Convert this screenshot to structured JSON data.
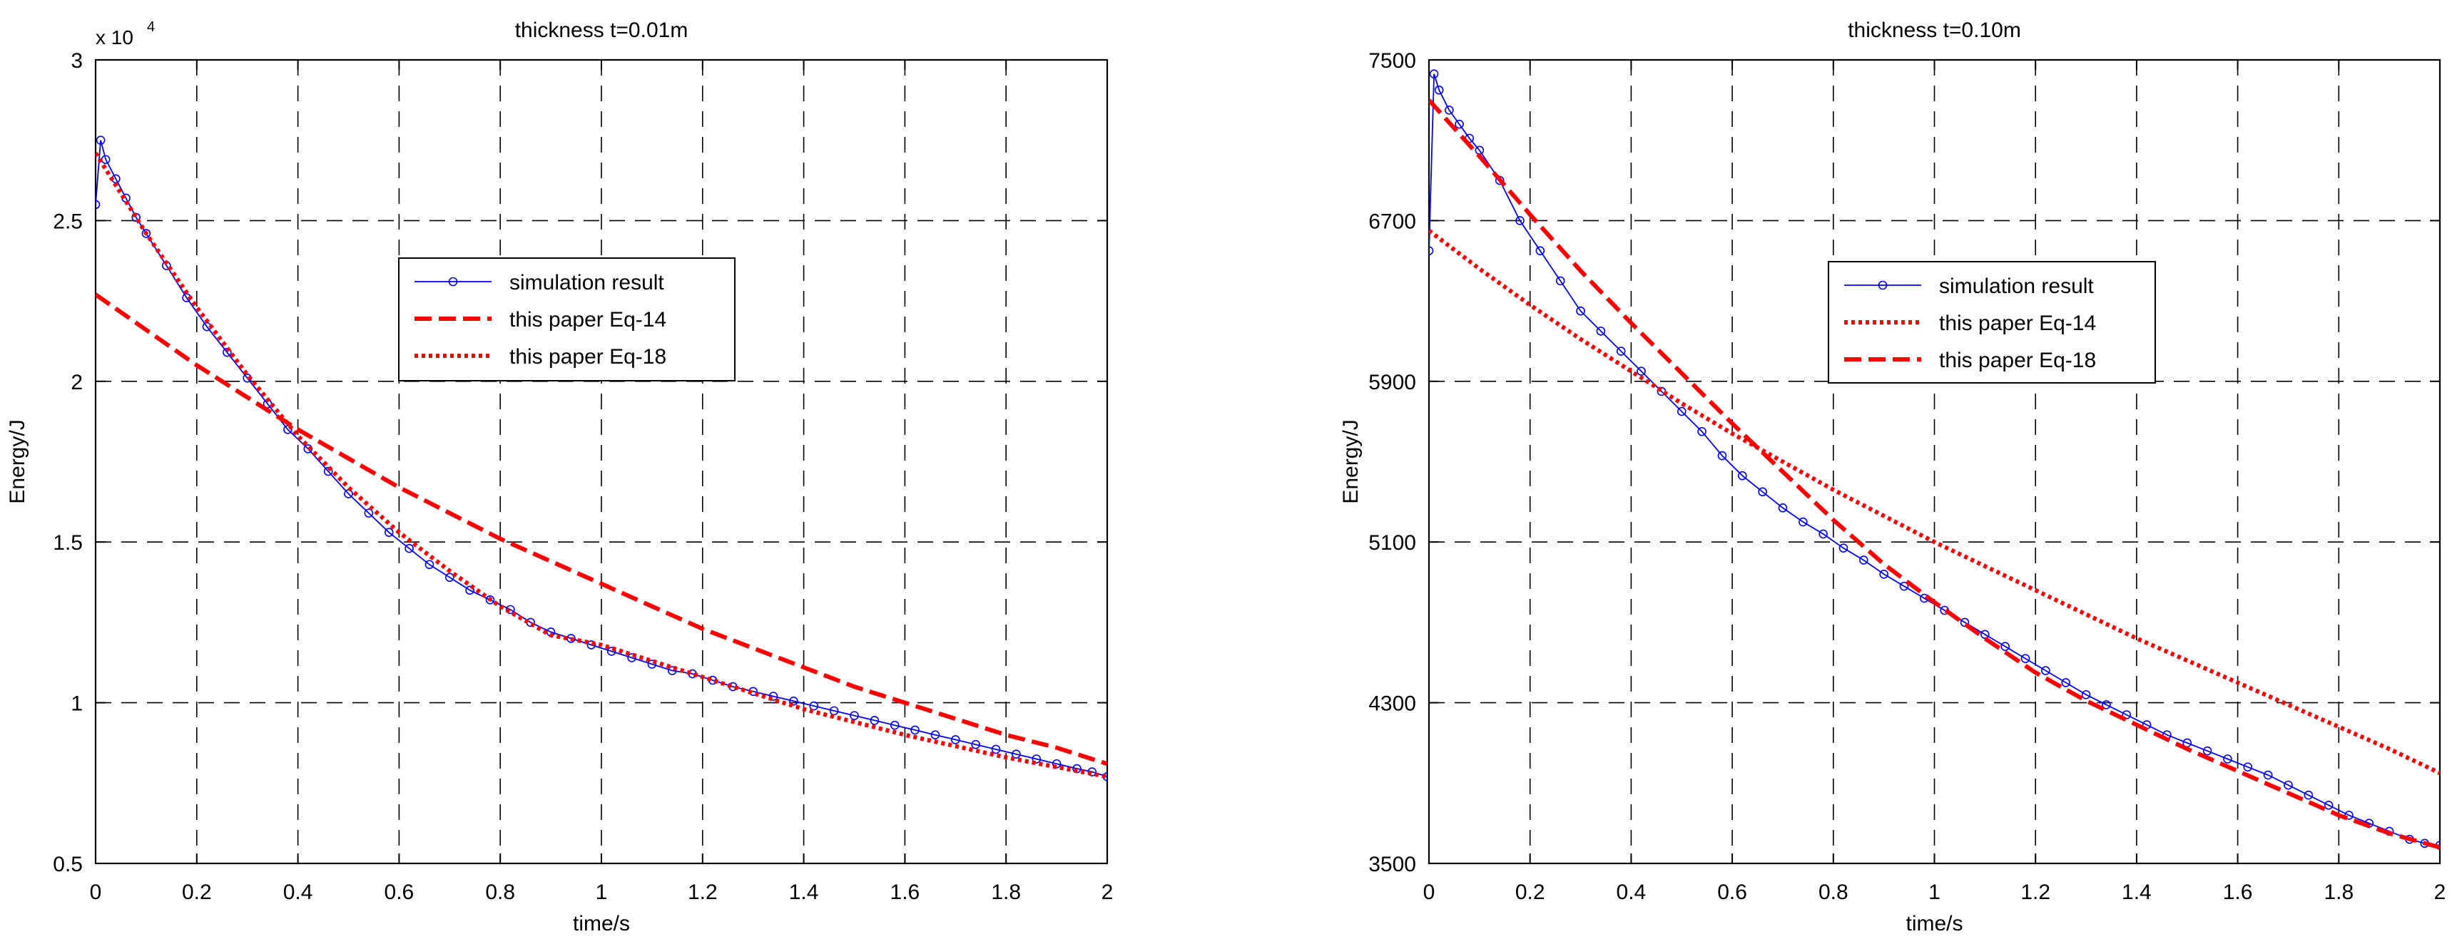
{
  "chart_data": [
    {
      "type": "line",
      "title": "thickness t=0.01m",
      "xlabel": "time/s",
      "ylabel": "Energy/J",
      "exponent_label": "x 10",
      "exponent_power": "4",
      "xlim": [
        0,
        2
      ],
      "ylim": [
        5000,
        30000
      ],
      "y_display_divisor": 10000,
      "xticks": [
        0,
        0.2,
        0.4,
        0.6,
        0.8,
        1,
        1.2,
        1.4,
        1.6,
        1.8,
        2
      ],
      "xtick_labels": [
        "0",
        "0.2",
        "0.4",
        "0.6",
        "0.8",
        "1",
        "1.2",
        "1.4",
        "1.6",
        "1.8",
        "2"
      ],
      "yticks": [
        5000,
        10000,
        15000,
        20000,
        25000,
        30000
      ],
      "ytick_labels": [
        "0.5",
        "1",
        "1.5",
        "2",
        "2.5",
        "3"
      ],
      "grid": true,
      "legend_position": "center",
      "series": [
        {
          "name": "simulation result",
          "color": "#0000ff",
          "style": "solid-marker",
          "x": [
            0,
            0.01,
            0.02,
            0.04,
            0.06,
            0.08,
            0.1,
            0.14,
            0.18,
            0.22,
            0.26,
            0.3,
            0.34,
            0.38,
            0.42,
            0.46,
            0.5,
            0.54,
            0.58,
            0.62,
            0.66,
            0.7,
            0.74,
            0.78,
            0.82,
            0.86,
            0.9,
            0.94,
            0.98,
            1.02,
            1.06,
            1.1,
            1.14,
            1.18,
            1.22,
            1.26,
            1.3,
            1.34,
            1.38,
            1.42,
            1.46,
            1.5,
            1.54,
            1.58,
            1.62,
            1.66,
            1.7,
            1.74,
            1.78,
            1.82,
            1.86,
            1.9,
            1.94,
            1.97,
            2.0
          ],
          "y": [
            25500,
            27500,
            26900,
            26300,
            25700,
            25100,
            24600,
            23600,
            22600,
            21700,
            20900,
            20100,
            19300,
            18500,
            17900,
            17200,
            16500,
            15900,
            15300,
            14800,
            14300,
            13900,
            13500,
            13200,
            12900,
            12500,
            12200,
            12000,
            11800,
            11600,
            11400,
            11200,
            11000,
            10900,
            10700,
            10500,
            10350,
            10200,
            10050,
            9900,
            9750,
            9600,
            9450,
            9300,
            9150,
            9000,
            8850,
            8700,
            8550,
            8400,
            8250,
            8100,
            7950,
            7850,
            7700
          ]
        },
        {
          "name": "this paper Eq-14",
          "color": "#ff0000",
          "style": "dashed",
          "x": [
            0,
            0.1,
            0.2,
            0.3,
            0.4,
            0.5,
            0.6,
            0.7,
            0.8,
            0.9,
            1.0,
            1.1,
            1.2,
            1.3,
            1.4,
            1.5,
            1.6,
            1.7,
            1.8,
            1.9,
            2.0
          ],
          "y": [
            22700,
            21600,
            20500,
            19500,
            18500,
            17600,
            16700,
            15900,
            15100,
            14400,
            13700,
            13000,
            12300,
            11700,
            11100,
            10500,
            10000,
            9500,
            9000,
            8600,
            8100
          ]
        },
        {
          "name": "this paper Eq-18",
          "color": "#ff0000",
          "style": "dotted",
          "x": [
            0,
            0.1,
            0.2,
            0.3,
            0.4,
            0.5,
            0.6,
            0.7,
            0.8,
            0.9,
            1.0,
            1.1,
            1.2,
            1.3,
            1.4,
            1.5,
            1.6,
            1.7,
            1.8,
            1.9,
            2.0
          ],
          "y": [
            27100,
            24600,
            22300,
            20200,
            18300,
            16700,
            15300,
            14100,
            13000,
            12100,
            11800,
            11300,
            10800,
            10300,
            9800,
            9400,
            9000,
            8650,
            8300,
            8000,
            7700
          ]
        }
      ]
    },
    {
      "type": "line",
      "title": "thickness t=0.10m",
      "xlabel": "time/s",
      "ylabel": "Energy/J",
      "xlim": [
        0,
        2
      ],
      "ylim": [
        3500,
        7500
      ],
      "xticks": [
        0,
        0.2,
        0.4,
        0.6,
        0.8,
        1,
        1.2,
        1.4,
        1.6,
        1.8,
        2
      ],
      "xtick_labels": [
        "0",
        "0.2",
        "0.4",
        "0.6",
        "0.8",
        "1",
        "1.2",
        "1.4",
        "1.6",
        "1.8",
        "2"
      ],
      "yticks": [
        3500,
        4300,
        5100,
        5900,
        6700,
        7500
      ],
      "ytick_labels": [
        "3500",
        "4300",
        "5100",
        "5900",
        "6700",
        "7500"
      ],
      "grid": true,
      "legend_position": "center",
      "series": [
        {
          "name": "simulation result",
          "color": "#0000ff",
          "style": "solid-marker",
          "x": [
            0,
            0.01,
            0.02,
            0.04,
            0.06,
            0.08,
            0.1,
            0.14,
            0.18,
            0.22,
            0.26,
            0.3,
            0.34,
            0.38,
            0.42,
            0.46,
            0.5,
            0.54,
            0.58,
            0.62,
            0.66,
            0.7,
            0.74,
            0.78,
            0.82,
            0.86,
            0.9,
            0.94,
            0.98,
            1.02,
            1.06,
            1.1,
            1.14,
            1.18,
            1.22,
            1.26,
            1.3,
            1.34,
            1.38,
            1.42,
            1.46,
            1.5,
            1.54,
            1.58,
            1.62,
            1.66,
            1.7,
            1.74,
            1.78,
            1.82,
            1.86,
            1.9,
            1.94,
            1.97,
            2.0
          ],
          "y": [
            6550,
            7430,
            7350,
            7250,
            7180,
            7110,
            7050,
            6900,
            6700,
            6550,
            6400,
            6250,
            6150,
            6050,
            5950,
            5850,
            5750,
            5650,
            5530,
            5430,
            5350,
            5270,
            5200,
            5140,
            5070,
            5010,
            4940,
            4880,
            4820,
            4760,
            4700,
            4640,
            4580,
            4520,
            4460,
            4400,
            4340,
            4290,
            4240,
            4190,
            4140,
            4100,
            4060,
            4020,
            3980,
            3940,
            3890,
            3840,
            3790,
            3740,
            3700,
            3660,
            3620,
            3600,
            3590
          ]
        },
        {
          "name": "this paper Eq-14",
          "color": "#ff0000",
          "style": "dotted",
          "x": [
            0,
            0.1,
            0.2,
            0.3,
            0.4,
            0.5,
            0.6,
            0.7,
            0.8,
            0.9,
            1.0,
            1.1,
            1.2,
            1.3,
            1.4,
            1.5,
            1.6,
            1.7,
            1.8,
            1.9,
            2.0
          ],
          "y": [
            6650,
            6460,
            6280,
            6110,
            5950,
            5790,
            5640,
            5500,
            5360,
            5230,
            5100,
            4980,
            4860,
            4740,
            4620,
            4510,
            4400,
            4290,
            4180,
            4070,
            3950
          ]
        },
        {
          "name": "this paper Eq-18",
          "color": "#ff0000",
          "style": "dashed",
          "x": [
            0,
            0.1,
            0.2,
            0.3,
            0.4,
            0.5,
            0.6,
            0.7,
            0.8,
            0.9,
            1.0,
            1.1,
            1.2,
            1.3,
            1.4,
            1.5,
            1.6,
            1.7,
            1.8,
            1.9,
            2.0
          ],
          "y": [
            7300,
            7020,
            6730,
            6450,
            6190,
            5940,
            5690,
            5450,
            5210,
            4990,
            4800,
            4620,
            4450,
            4310,
            4190,
            4070,
            3960,
            3850,
            3740,
            3650,
            3580
          ]
        }
      ]
    }
  ]
}
